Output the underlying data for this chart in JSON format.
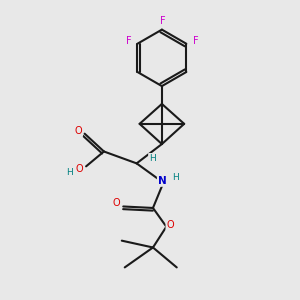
{
  "bg_color": "#e8e8e8",
  "bond_color": "#1a1a1a",
  "O_color": "#dd0000",
  "N_color": "#0000cc",
  "F_color": "#cc00cc",
  "H_color": "#008080",
  "lw": 1.5,
  "figsize": [
    3.0,
    3.0
  ],
  "dpi": 100,
  "xlim": [
    0,
    10
  ],
  "ylim": [
    0,
    10
  ]
}
